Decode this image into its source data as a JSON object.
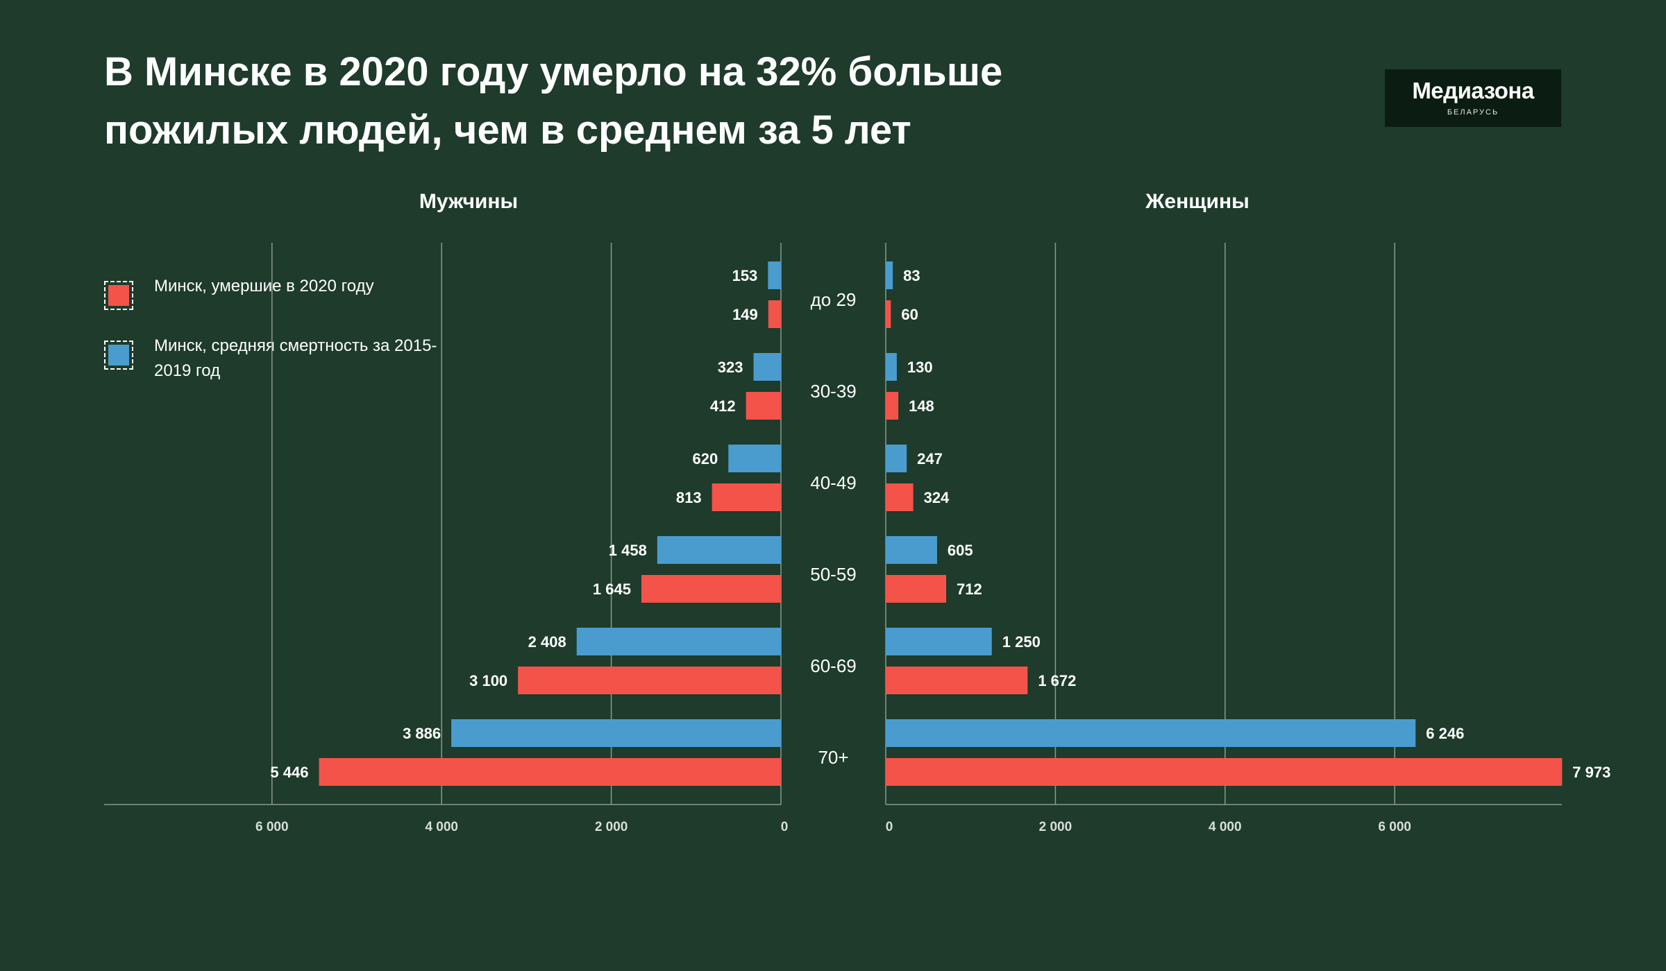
{
  "title": "В Минске в 2020 году умерло на 32% больше пожилых людей, чем в среднем за 5 лет",
  "logo": {
    "name": "Медиазона",
    "subtitle": "БЕЛАРУСЬ"
  },
  "legend": [
    {
      "label": "Минск, умершие в 2020 году",
      "color": "#f4534a"
    },
    {
      "label": "Минск, средняя смертность за 2015-2019 год",
      "color": "#4a9ccf"
    }
  ],
  "colors": {
    "background": "#1e3b2b",
    "series_2020": "#f4534a",
    "series_avg": "#4a9ccf",
    "grid": "#8a9a8f"
  },
  "chart_data": {
    "type": "bar",
    "orientation": "horizontal-mirrored",
    "categories": [
      "до 29",
      "30-39",
      "40-49",
      "50-59",
      "60-69",
      "70+"
    ],
    "panels": [
      {
        "name": "Мужчины",
        "direction": "left",
        "xlim": [
          0,
          8000
        ],
        "ticks": [
          0,
          2000,
          4000,
          6000
        ],
        "tick_labels": [
          "0",
          "2 000",
          "4 000",
          "6 000"
        ],
        "series": [
          {
            "name": "Минск, средняя смертность за 2015-2019 год",
            "values": [
              153,
              323,
              620,
              1458,
              2408,
              3886
            ],
            "labels": [
              "153",
              "323",
              "620",
              "1 458",
              "2 408",
              "3 886"
            ]
          },
          {
            "name": "Минск, умершие в 2020 году",
            "values": [
              149,
              412,
              813,
              1645,
              3100,
              5446
            ],
            "labels": [
              "149",
              "412",
              "813",
              "1 645",
              "3 100",
              "5 446"
            ]
          }
        ]
      },
      {
        "name": "Женщины",
        "direction": "right",
        "xlim": [
          0,
          8000
        ],
        "ticks": [
          0,
          2000,
          4000,
          6000
        ],
        "tick_labels": [
          "0",
          "2 000",
          "4 000",
          "6 000"
        ],
        "series": [
          {
            "name": "Минск, средняя смертность за 2015-2019 год",
            "values": [
              83,
              130,
              247,
              605,
              1250,
              6246
            ],
            "labels": [
              "83",
              "130",
              "247",
              "605",
              "1 250",
              "6 246"
            ]
          },
          {
            "name": "Минск, умершие в 2020 году",
            "values": [
              60,
              148,
              324,
              712,
              1672,
              7973
            ],
            "labels": [
              "60",
              "148",
              "324",
              "712",
              "1 672",
              "7 973"
            ]
          }
        ]
      }
    ],
    "grid": true
  }
}
